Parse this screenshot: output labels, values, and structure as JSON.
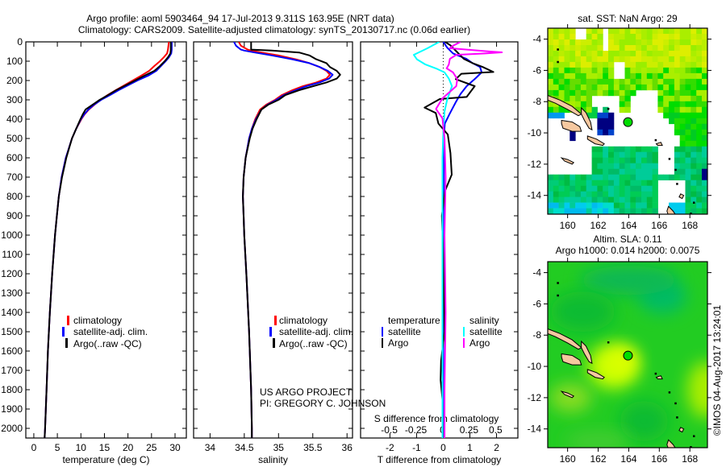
{
  "title": {
    "line1": "Argo profile: aoml 5903464_94 17-Jul-2013 9.311S 163.95E (NRT data)",
    "line2": "Climatology: CARS2009. Satellite-adjusted climatology: synTS_20130717.nc (0.06d earlier)"
  },
  "colors": {
    "climatology": "#ff0000",
    "satellite": "#0000ff",
    "argo": "#000000",
    "sal_satellite": "#00ffff",
    "sal_argo": "#ff00ff",
    "land": "#f5c8a0"
  },
  "depth_ticks": [
    "0",
    "100",
    "200",
    "300",
    "400",
    "500",
    "600",
    "700",
    "800",
    "900",
    "1000",
    "1100",
    "1200",
    "1300",
    "1400",
    "1500",
    "1600",
    "1700",
    "1800",
    "1900",
    "2000"
  ],
  "legend_profiles": {
    "climatology": "climatology",
    "satellite": "satellite-adj. clim.",
    "argo": "Argo(..raw -QC)"
  },
  "legend_diff": {
    "t_head": "temperature",
    "t_sat": "satellite",
    "t_argo": "Argo",
    "s_head": "salinity",
    "s_sat": "satellite",
    "s_argo": "Argo"
  },
  "credit": {
    "line1": "US ARGO PROJECT",
    "line2": "PI: GREGORY C. JOHNSON"
  },
  "chart_data": [
    {
      "type": "line",
      "name": "temperature",
      "xlabel": "temperature (deg C)",
      "ylabel": "depth",
      "xticks": [
        "0",
        "5",
        "10",
        "15",
        "20",
        "25",
        "30"
      ],
      "xlim": [
        -1.7,
        32.4
      ],
      "ylim": [
        2050,
        0
      ],
      "series": [
        {
          "name": "climatology",
          "depth": [
            0,
            20,
            40,
            60,
            80,
            100,
            125,
            150,
            175,
            200,
            225,
            250,
            275,
            300,
            325,
            350,
            375,
            400,
            450,
            500,
            600,
            700,
            800,
            900,
            1000,
            1200,
            1400,
            1600,
            1800,
            2000,
            2050
          ],
          "values": [
            28.7,
            28.6,
            28.5,
            28.3,
            27.6,
            26.8,
            25.6,
            24.5,
            22.8,
            21,
            19.2,
            17.4,
            15.7,
            14.2,
            12.9,
            11.7,
            10.8,
            10.1,
            9,
            8.1,
            6.8,
            5.9,
            5.3,
            4.9,
            4.5,
            3.9,
            3.4,
            3.0,
            2.7,
            2.4,
            2.3
          ]
        },
        {
          "name": "satellite-adj. clim.",
          "depth": [
            0,
            20,
            40,
            60,
            80,
            100,
            125,
            150,
            175,
            200,
            225,
            250,
            275,
            300,
            325,
            350,
            375,
            400,
            450,
            500,
            600,
            700,
            800,
            900,
            1000,
            1200,
            1400,
            1600,
            1800,
            2000,
            2050
          ],
          "values": [
            29.3,
            29.3,
            29.3,
            29.2,
            28.7,
            28,
            27,
            26,
            24.3,
            22,
            20,
            18,
            16.2,
            14.3,
            12.8,
            11.6,
            10.7,
            10,
            9,
            8.1,
            6.8,
            5.9,
            5.3,
            4.9,
            4.5,
            3.9,
            3.4,
            3.0,
            2.7,
            2.4,
            2.3
          ]
        },
        {
          "name": "Argo",
          "depth": [
            0,
            20,
            40,
            60,
            80,
            100,
            125,
            150,
            175,
            200,
            225,
            250,
            275,
            300,
            325,
            350,
            375,
            400,
            450,
            500,
            600,
            700,
            800,
            900,
            1000,
            1200,
            1400,
            1600,
            1800,
            2000,
            2050
          ],
          "values": [
            29.1,
            29.1,
            29.1,
            29.0,
            28.5,
            27.8,
            26.8,
            25.6,
            23.5,
            21.5,
            19.5,
            17.5,
            15.8,
            14,
            12.5,
            11,
            10.4,
            9.9,
            9,
            8.1,
            6.9,
            6.0,
            5.3,
            4.9,
            4.5,
            3.9,
            3.4,
            3.0,
            2.7,
            2.4,
            2.3
          ]
        }
      ]
    },
    {
      "type": "line",
      "name": "salinity",
      "xlabel": "salinity",
      "ylabel": "depth",
      "xticks": [
        "34",
        "34.5",
        "35",
        "35.5",
        "36"
      ],
      "xlim": [
        33.76,
        36.08
      ],
      "ylim": [
        2050,
        0
      ],
      "series": [
        {
          "name": "climatology",
          "depth": [
            0,
            20,
            40,
            45,
            55,
            70,
            90,
            110,
            130,
            150,
            170,
            190,
            210,
            230,
            250,
            275,
            300,
            325,
            350,
            400,
            450,
            500,
            600,
            700,
            800,
            900,
            1000,
            1200,
            1500,
            1800,
            2000,
            2050
          ],
          "values": [
            34.42,
            34.45,
            34.55,
            34.6,
            34.75,
            35.0,
            35.25,
            35.45,
            35.6,
            35.7,
            35.75,
            35.7,
            35.55,
            35.35,
            35.2,
            35.05,
            34.95,
            34.82,
            34.73,
            34.66,
            34.61,
            34.57,
            34.52,
            34.49,
            34.48,
            34.49,
            34.5,
            34.53,
            34.57,
            34.6,
            34.61,
            34.61
          ]
        },
        {
          "name": "satellite-adj. clim.",
          "depth": [
            0,
            20,
            40,
            45,
            55,
            70,
            90,
            110,
            130,
            150,
            170,
            190,
            210,
            230,
            250,
            275,
            300,
            325,
            350,
            400,
            450,
            500,
            600,
            700,
            800,
            900,
            1000,
            1200,
            1500,
            1800,
            2000,
            2050
          ],
          "values": [
            34.35,
            34.38,
            34.45,
            34.5,
            34.65,
            34.9,
            35.2,
            35.45,
            35.6,
            35.72,
            35.79,
            35.74,
            35.6,
            35.4,
            35.25,
            35.08,
            34.97,
            34.84,
            34.75,
            34.67,
            34.61,
            34.57,
            34.52,
            34.49,
            34.48,
            34.49,
            34.5,
            34.53,
            34.57,
            34.6,
            34.61,
            34.61
          ]
        },
        {
          "name": "Argo",
          "depth": [
            0,
            20,
            40,
            45,
            55,
            70,
            90,
            110,
            130,
            150,
            170,
            190,
            210,
            230,
            250,
            275,
            300,
            325,
            350,
            400,
            450,
            500,
            600,
            700,
            800,
            900,
            1000,
            1200,
            1500,
            1800,
            2000,
            2050
          ],
          "values": [
            34.6,
            34.6,
            34.6,
            34.9,
            35.3,
            35.45,
            35.55,
            35.7,
            35.75,
            35.85,
            35.9,
            35.85,
            35.7,
            35.5,
            35.3,
            35.1,
            35.0,
            34.85,
            34.75,
            34.68,
            34.62,
            34.58,
            34.52,
            34.49,
            34.48,
            34.49,
            34.5,
            34.53,
            34.57,
            34.6,
            34.61,
            34.61
          ]
        }
      ]
    },
    {
      "type": "line",
      "name": "difference",
      "xlabel": "T difference from climatology",
      "xlabel2": "S difference from climatology",
      "xticks": [
        "-2",
        "-1",
        "0",
        "1",
        "2"
      ],
      "xticks2": [
        "-0.5",
        "-0.25",
        "0",
        "0.25",
        "0.5"
      ],
      "xlim": [
        -3.1,
        2.8
      ],
      "xlim2": [
        -0.77,
        0.71
      ],
      "ylim": [
        2050,
        0
      ],
      "series": [
        {
          "name": "T satellite",
          "axis": "T",
          "depth": [
            0,
            30,
            60,
            88,
            110,
            130,
            158,
            190,
            229,
            270,
            312,
            370,
            423,
            500,
            800,
            1200,
            1600,
            2000,
            2050
          ],
          "values": [
            0,
            0.15,
            0.37,
            0.87,
            1.1,
            1.38,
            1.44,
            1.2,
            0.88,
            0.65,
            0.47,
            0.25,
            0.06,
            0.02,
            0.02,
            0.01,
            0.0,
            0.0,
            0.0
          ]
        },
        {
          "name": "T Argo",
          "axis": "T",
          "depth": [
            0,
            18,
            50,
            88,
            110,
            130,
            156,
            165,
            193,
            229,
            285,
            296,
            340,
            368,
            423,
            479,
            576,
            687,
            770,
            900,
            1100,
            1300,
            1500,
            1650,
            1750,
            1850,
            2000,
            2050
          ],
          "values": [
            0.07,
            0.27,
            0.5,
            0.77,
            1.1,
            1.48,
            1.88,
            0.68,
            0.47,
            1.18,
            0.88,
            -0.13,
            -0.7,
            -0.28,
            -0.18,
            0.17,
            0.27,
            0.32,
            0.07,
            -0.05,
            0.0,
            0.03,
            0.05,
            -0.08,
            -0.1,
            -0.03,
            -0.02,
            -0.02
          ]
        },
        {
          "name": "S satellite",
          "axis": "S",
          "depth": [
            0,
            33,
            67,
            90,
            117,
            140,
            158,
            190,
            229,
            298,
            360,
            437,
            600,
            1000,
            1500,
            2000,
            2050
          ],
          "values": [
            -0.03,
            -0.14,
            -0.27,
            -0.24,
            -0.16,
            -0.05,
            0.02,
            0.06,
            0.09,
            0.045,
            0.02,
            0.01,
            0.0,
            0.0,
            0.0,
            0.0,
            0.0
          ]
        },
        {
          "name": "S Argo",
          "axis": "S",
          "depth": [
            0,
            20,
            33,
            50,
            54,
            60,
            67,
            88,
            117,
            137,
            158,
            193,
            229,
            292,
            347,
            396,
            500,
            700,
            1000,
            1400,
            1800,
            2000,
            2050
          ],
          "values": [
            0.17,
            0.1,
            0.07,
            0.45,
            0.56,
            0.4,
            0.13,
            0.07,
            0.06,
            0.04,
            0.1,
            0.14,
            0.13,
            0.0,
            -0.06,
            0.0,
            0.02,
            0.03,
            0.02,
            0.03,
            0.02,
            0.02,
            0.02
          ]
        }
      ]
    }
  ],
  "maps": {
    "sst": {
      "title": "sat. SST: NaN Argo: 29"
    },
    "sla": {
      "title1": "Altim. SLA: 0.11",
      "title2": "Argo h1000: 0.014 h2000: 0.0075"
    },
    "lat_ticks": [
      "-4",
      "-6",
      "-8",
      "-10",
      "-12",
      "-14"
    ],
    "lon_ticks": [
      "160",
      "162",
      "164",
      "166",
      "168"
    ],
    "float_position": {
      "lat": -9.311,
      "lon": 163.95
    }
  },
  "stamp": "©IMOS 04-Aug-2017 13:24:01"
}
